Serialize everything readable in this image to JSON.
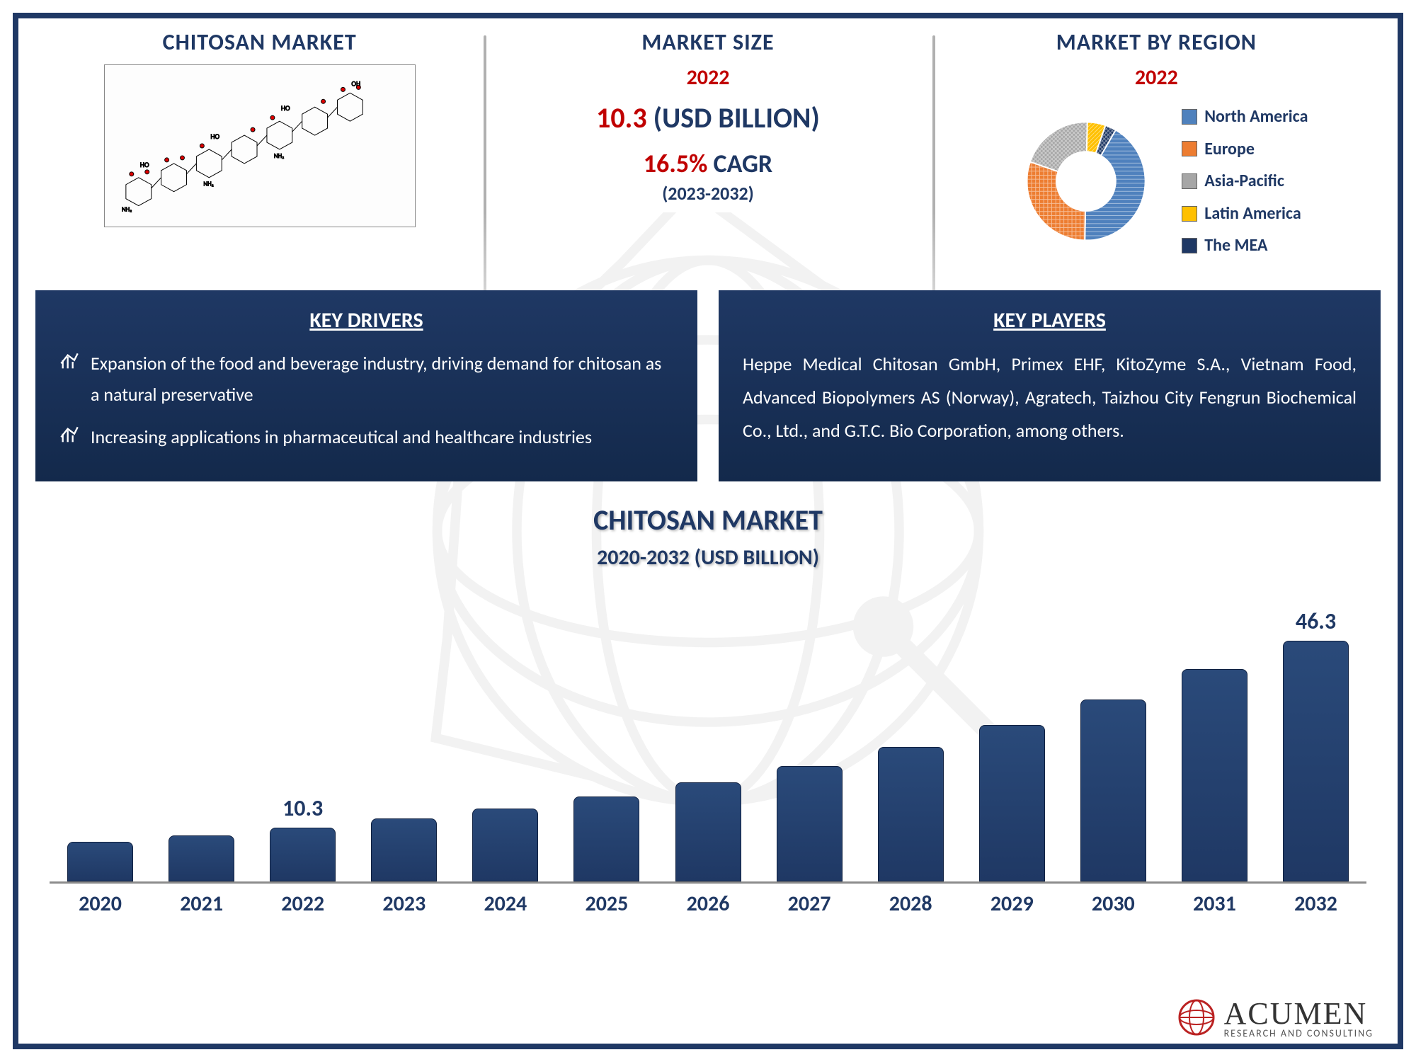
{
  "colors": {
    "navy": "#1f3864",
    "red": "#c00000",
    "bar": "#1f3864",
    "barBorder": "#0f2040"
  },
  "section1": {
    "title": "CHITOSAN MARKET"
  },
  "section2": {
    "title": "MARKET SIZE",
    "year": "2022",
    "value": "10.3",
    "unit": "(USD BILLION)",
    "cagr": "16.5%",
    "cagrLabel": "CAGR",
    "period": "(2023-2032)"
  },
  "section3": {
    "title": "MARKET BY REGION",
    "year": "2022",
    "donut": {
      "slices": [
        {
          "label": "North America",
          "value": 42,
          "color": "#4f81bd",
          "pattern": "hline"
        },
        {
          "label": "Europe",
          "value": 30,
          "color": "#ed7d31",
          "pattern": "check"
        },
        {
          "label": "Asia-Pacific",
          "value": 20,
          "color": "#a6a6a6",
          "pattern": "dot"
        },
        {
          "label": "Latin America",
          "value": 5,
          "color": "#ffc000",
          "pattern": "diag"
        },
        {
          "label": "The MEA",
          "value": 3,
          "color": "#1f3864",
          "pattern": "grid"
        }
      ],
      "innerRadius": 0.5,
      "startAngle": 30
    }
  },
  "drivers": {
    "title": "KEY DRIVERS",
    "items": [
      "Expansion of the food and beverage industry, driving demand for chitosan as a natural preservative",
      "Increasing applications in pharmaceutical and healthcare industries"
    ]
  },
  "players": {
    "title": "KEY PLAYERS",
    "text": "Heppe Medical Chitosan GmbH, Primex EHF, KitoZyme S.A., Vietnam Food, Advanced Biopolymers AS (Norway), Agratech, Taizhou City Fengrun Biochemical Co., Ltd., and G.T.C. Bio Corporation, among others."
  },
  "barChart": {
    "title": "CHITOSAN MARKET",
    "subtitle": "2020-2032 (USD BILLION)",
    "ymax": 50,
    "barWidthPct": 5.0,
    "barColor": "#1f3864",
    "years": [
      "2020",
      "2021",
      "2022",
      "2023",
      "2024",
      "2025",
      "2026",
      "2027",
      "2028",
      "2029",
      "2030",
      "2031",
      "2032"
    ],
    "values": [
      7.6,
      8.8,
      10.3,
      12.0,
      14.0,
      16.3,
      19.0,
      22.1,
      25.8,
      30.0,
      35.0,
      40.8,
      46.3
    ],
    "labels": {
      "2": "10.3",
      "12": "46.3"
    }
  },
  "footer": {
    "brand": "ACUMEN",
    "tag": "RESEARCH AND CONSULTING"
  }
}
